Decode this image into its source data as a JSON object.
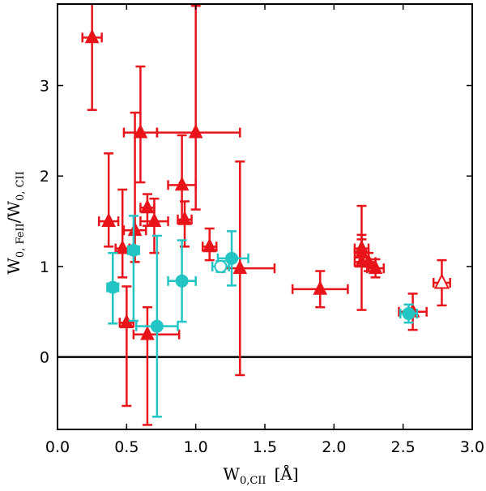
{
  "chart_data": {
    "type": "scatter",
    "title": "",
    "xlabel": {
      "main": "W",
      "sub": "0,CII",
      "unit": "[Å]"
    },
    "ylabel": {
      "main": "W",
      "sub1": "0, FeII",
      "slash": "/W",
      "sub2": "0, CII"
    },
    "xlim": [
      0.0,
      3.0
    ],
    "ylim": [
      -0.8,
      3.9
    ],
    "xticks": [
      0.0,
      0.5,
      1.0,
      1.5,
      2.0,
      2.5,
      3.0
    ],
    "xtick_labels": [
      "0.0",
      "0.5",
      "1.0",
      "1.5",
      "2.0",
      "2.5",
      "3.0"
    ],
    "yticks": [
      0,
      1,
      2,
      3
    ],
    "ytick_labels": [
      "0",
      "1",
      "2",
      "3"
    ],
    "hline": 0,
    "colors": {
      "red": "#e8141a",
      "cyan": "#22c4c4",
      "axis": "#000000"
    },
    "series": [
      {
        "name": "triangles",
        "marker": "triangle",
        "color": "red",
        "points": [
          {
            "x": 0.25,
            "y": 3.53,
            "xerr": [
              0.07,
              0.07
            ],
            "yerr": [
              0.8,
              0.4
            ]
          },
          {
            "x": 0.37,
            "y": 1.5,
            "xerr": [
              0.07,
              0.07
            ],
            "yerr": [
              0.28,
              0.75
            ]
          },
          {
            "x": 0.47,
            "y": 1.2,
            "xerr": [
              0.05,
              0.05
            ],
            "yerr": [
              0.32,
              0.65
            ]
          },
          {
            "x": 0.5,
            "y": 0.38,
            "xerr": [
              0.05,
              0.05
            ],
            "yerr": [
              0.92,
              0.4
            ]
          },
          {
            "x": 0.56,
            "y": 1.4,
            "xerr": [
              0.08,
              0.08
            ],
            "yerr": [
              0.35,
              1.3
            ]
          },
          {
            "x": 0.6,
            "y": 2.48,
            "xerr": [
              0.12,
              0.12
            ],
            "yerr": [
              0.55,
              0.73
            ]
          },
          {
            "x": 0.65,
            "y": 1.65,
            "xerr": [
              0.05,
              0.05
            ],
            "yerr": [
              0.2,
              0.15
            ]
          },
          {
            "x": 0.65,
            "y": 0.25,
            "xerr": [
              0.1,
              0.23
            ],
            "yerr": [
              1.0,
              0.3
            ]
          },
          {
            "x": 0.7,
            "y": 1.5,
            "xerr": [
              0.1,
              0.1
            ],
            "yerr": [
              0.35,
              0.25
            ]
          },
          {
            "x": 0.9,
            "y": 1.9,
            "xerr": [
              0.1,
              0.1
            ],
            "yerr": [
              0.4,
              0.55
            ]
          },
          {
            "x": 0.92,
            "y": 1.52,
            "xerr": [
              0.05,
              0.05
            ],
            "yerr": [
              0.3,
              0.2
            ]
          },
          {
            "x": 1.0,
            "y": 2.48,
            "xerr": [
              0.28,
              0.32
            ],
            "yerr": [
              0.85,
              1.4
            ]
          },
          {
            "x": 1.1,
            "y": 1.22,
            "xerr": [
              0.05,
              0.05
            ],
            "yerr": [
              0.15,
              0.2
            ]
          },
          {
            "x": 1.32,
            "y": 0.98,
            "xerr": [
              0.13,
              0.25
            ],
            "yerr": [
              1.18,
              1.18
            ]
          },
          {
            "x": 1.9,
            "y": 0.75,
            "xerr": [
              0.2,
              0.2
            ],
            "yerr": [
              0.2,
              0.2
            ]
          },
          {
            "x": 2.2,
            "y": 1.2,
            "xerr": [
              0.05,
              0.05
            ],
            "yerr": [
              0.1,
              0.1
            ]
          },
          {
            "x": 2.2,
            "y": 1.15,
            "xerr": [
              0.05,
              0.05
            ],
            "yerr": [
              0.1,
              0.52
            ]
          },
          {
            "x": 2.2,
            "y": 1.05,
            "xerr": [
              0.05,
              0.05
            ],
            "yerr": [
              0.53,
              0.3
            ]
          },
          {
            "x": 2.25,
            "y": 1.05,
            "xerr": [
              0.05,
              0.05
            ],
            "yerr": [
              0.1,
              0.1
            ]
          },
          {
            "x": 2.3,
            "y": 0.98,
            "xerr": [
              0.06,
              0.06
            ],
            "yerr": [
              0.1,
              0.1
            ]
          },
          {
            "x": 2.57,
            "y": 0.5,
            "xerr": [
              0.1,
              0.1
            ],
            "yerr": [
              0.2,
              0.2
            ]
          }
        ]
      },
      {
        "name": "open-triangle",
        "marker": "triangle-open",
        "color": "red",
        "points": [
          {
            "x": 2.78,
            "y": 0.82,
            "xerr": [
              0.06,
              0.06
            ],
            "yerr": [
              0.25,
              0.25
            ]
          }
        ]
      },
      {
        "name": "circles",
        "marker": "circle",
        "color": "cyan",
        "points": [
          {
            "x": 0.4,
            "y": 0.77,
            "xerr": [
              0.04,
              0.04
            ],
            "yerr": [
              0.4,
              0.38
            ]
          },
          {
            "x": 0.55,
            "y": 1.18,
            "xerr": [
              0.04,
              0.04
            ],
            "yerr": [
              0.78,
              0.38
            ]
          },
          {
            "x": 0.72,
            "y": 0.34,
            "xerr": [
              0.15,
              0.15
            ],
            "yerr": [
              1.0,
              1.0
            ]
          },
          {
            "x": 0.9,
            "y": 0.84,
            "xerr": [
              0.1,
              0.1
            ],
            "yerr": [
              0.45,
              0.45
            ]
          },
          {
            "x": 1.26,
            "y": 1.09,
            "xerr": [
              0.1,
              0.12
            ],
            "yerr": [
              0.3,
              0.3
            ]
          },
          {
            "x": 2.54,
            "y": 0.48,
            "xerr": [
              0.06,
              0.06
            ],
            "yerr": [
              0.1,
              0.1
            ]
          }
        ]
      },
      {
        "name": "open-circle",
        "marker": "circle-open",
        "color": "cyan",
        "points": [
          {
            "x": 1.18,
            "y": 1.0,
            "xerr": [
              0.06,
              0.06
            ],
            "yerr": [
              0.06,
              0.06
            ]
          }
        ]
      }
    ]
  }
}
